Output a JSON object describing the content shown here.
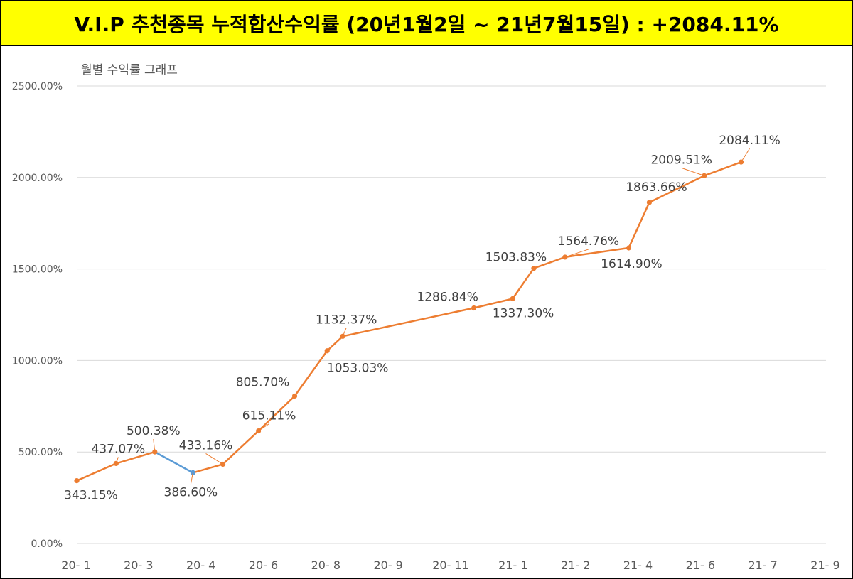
{
  "header": {
    "title": "V.I.P 추천종목 누적합산수익률 (20년1월2일 ~ 21년7월15일) : +2084.11%"
  },
  "chart_data": {
    "type": "line",
    "title": "월별 수익률 그래프",
    "ylim": [
      0,
      2500
    ],
    "yticks": [
      0,
      500,
      1000,
      1500,
      2000,
      2500
    ],
    "ytick_labels": [
      "0.00%",
      "500.00%",
      "1000.00%",
      "1500.00%",
      "2000.00%",
      "2500.00%"
    ],
    "xlim": [
      0,
      12
    ],
    "xtick_labels": [
      "20- 1",
      "20- 3",
      "20- 4",
      "20- 6",
      "20- 8",
      "20- 9",
      "20- 11",
      "21- 1",
      "21- 2",
      "21- 4",
      "21- 6",
      "21- 7",
      "21- 9"
    ],
    "grid": true,
    "legend": "none",
    "colors": {
      "line": "#ed7d31",
      "highlight": "#5b9bd5",
      "grid": "#d9d9d9"
    },
    "points": [
      {
        "x": 0.0,
        "y": 343.15,
        "label": "343.15%"
      },
      {
        "x": 0.63,
        "y": 437.07,
        "label": "437.07%"
      },
      {
        "x": 1.25,
        "y": 500.38,
        "label": "500.38%"
      },
      {
        "x": 1.86,
        "y": 386.6,
        "label": "386.60%"
      },
      {
        "x": 2.34,
        "y": 433.16,
        "label": "433.16%"
      },
      {
        "x": 2.91,
        "y": 615.11,
        "label": "615.11%"
      },
      {
        "x": 3.49,
        "y": 805.7,
        "label": "805.70%"
      },
      {
        "x": 4.01,
        "y": 1053.03,
        "label": "1053.03%"
      },
      {
        "x": 4.26,
        "y": 1132.37,
        "label": "1132.37%"
      },
      {
        "x": 6.36,
        "y": 1286.84,
        "label": "1286.84%"
      },
      {
        "x": 6.98,
        "y": 1337.3,
        "label": "1337.30%"
      },
      {
        "x": 7.32,
        "y": 1503.83,
        "label": "1503.83%"
      },
      {
        "x": 7.82,
        "y": 1564.76,
        "label": "1564.76%"
      },
      {
        "x": 8.84,
        "y": 1614.9,
        "label": "1614.90%"
      },
      {
        "x": 9.17,
        "y": 1863.66,
        "label": "1863.66%"
      },
      {
        "x": 10.05,
        "y": 2009.51,
        "label": "2009.51%"
      },
      {
        "x": 10.64,
        "y": 2084.11,
        "label": "2084.11%"
      }
    ],
    "highlight_segment": [
      2,
      3
    ]
  }
}
